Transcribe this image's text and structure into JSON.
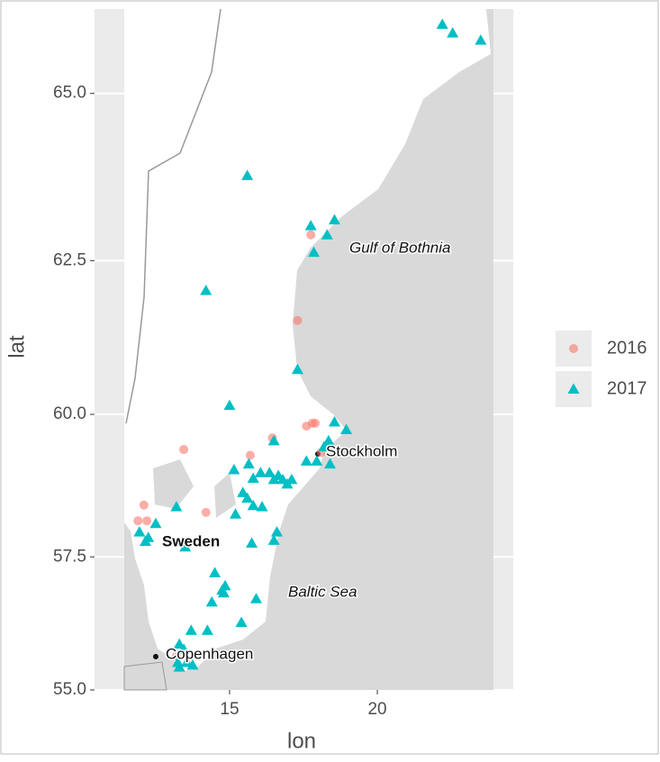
{
  "chart_data": {
    "type": "scatter",
    "projection": "mercator",
    "x_label": "lon",
    "y_label": "lat",
    "xlim": [
      10.43,
      24.6
    ],
    "xticks": [
      15,
      20
    ],
    "ylim": [
      55,
      66.18
    ],
    "yticks": [
      {
        "value": 55,
        "label": "55.0"
      },
      57.5,
      {
        "value": 60,
        "label": "60.0"
      },
      62.5,
      {
        "value": 65,
        "label": "65.0"
      }
    ],
    "grid": true,
    "legend": "right",
    "annotations": [
      "Gulf of Bothnia",
      "Stockholm",
      "Sweden",
      "Baltic Sea",
      "Copenhagen"
    ],
    "series": [
      {
        "name": "2016",
        "color": "#f8766d",
        "marker": "circle",
        "x": [
          17.3,
          17.75,
          17.6,
          17.8,
          17.9,
          16.45,
          18.1,
          15.7,
          13.45,
          12.1,
          11.9,
          12.2,
          14.2,
          13.2
        ],
        "y": [
          61.55,
          62.9,
          59.8,
          59.85,
          59.85,
          59.6,
          59.35,
          59.3,
          59.4,
          58.43,
          58.15,
          58.15,
          58.3,
          55.65
        ]
      },
      {
        "name": "2017",
        "color": "#00bfc4",
        "marker": "triangle",
        "x": [
          22.2,
          22.55,
          23.5,
          15.6,
          17.75,
          18.55,
          18.3,
          17.85,
          14.2,
          17.3,
          15.0,
          18.55,
          18.95,
          18.35,
          18.2,
          16.5,
          17.6,
          17.95,
          18.4,
          15.65,
          15.15,
          16.05,
          16.35,
          16.65,
          16.8,
          16.95,
          17.1,
          16.5,
          15.8,
          15.45,
          15.6,
          15.8,
          16.1,
          15.2,
          13.2,
          12.5,
          11.95,
          12.25,
          12.15,
          13.5,
          16.6,
          16.5,
          15.75,
          14.5,
          14.85,
          14.8,
          14.4,
          14.75,
          15.9,
          15.4,
          13.7,
          14.25,
          13.3,
          13.45,
          13.25,
          13.55,
          13.75,
          13.3
        ],
        "y": [
          65.97,
          65.85,
          65.75,
          63.8,
          63.04,
          63.13,
          62.9,
          62.63,
          62.03,
          60.75,
          60.15,
          59.87,
          59.74,
          59.55,
          59.45,
          59.55,
          59.2,
          59.2,
          59.15,
          59.15,
          59.05,
          59.0,
          59.0,
          58.95,
          58.88,
          58.8,
          58.88,
          58.88,
          58.9,
          58.65,
          58.55,
          58.42,
          58.4,
          58.27,
          58.4,
          58.1,
          57.95,
          57.85,
          57.78,
          57.68,
          57.95,
          57.8,
          57.75,
          57.21,
          56.97,
          56.84,
          56.67,
          56.89,
          56.73,
          56.29,
          56.14,
          56.14,
          55.88,
          55.78,
          55.53,
          55.53,
          55.48,
          55.44
        ]
      }
    ]
  }
}
